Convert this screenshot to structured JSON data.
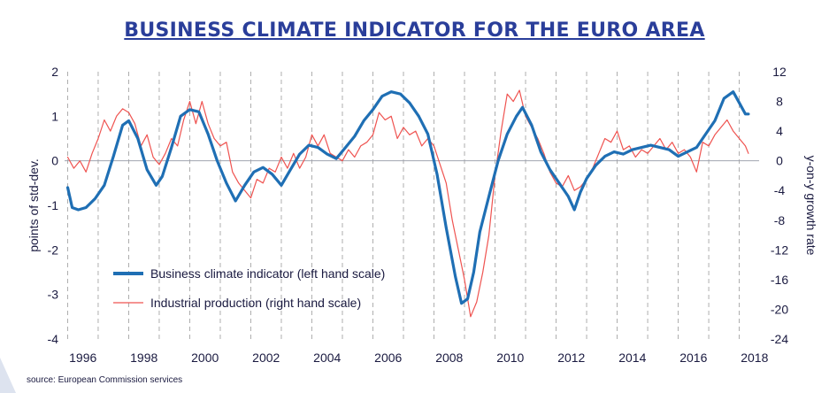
{
  "title": "BUSINESS CLIMATE INDICATOR FOR THE EURO AREA",
  "source": "source: European Commission services",
  "chart_data": {
    "type": "line",
    "title": "BUSINESS CLIMATE INDICATOR FOR THE EURO AREA",
    "xlabel": "",
    "ylabel": "points of std-dev.",
    "y2label": "y-on-y growth rate",
    "ylim": [
      -4,
      2
    ],
    "y2lim": [
      -24,
      12
    ],
    "xlim": [
      1995.9,
      2018.65
    ],
    "yticks": [
      "-4",
      "-3",
      "-2",
      "-1",
      "0",
      "1",
      "2"
    ],
    "y2ticks": [
      "-24",
      "-20",
      "-16",
      "-12",
      "-8",
      "-4",
      "0",
      "4",
      "8",
      "12"
    ],
    "xticks": [
      "1996",
      "1998",
      "2000",
      "2002",
      "2004",
      "2006",
      "2008",
      "2010",
      "2012",
      "2014",
      "2016",
      "2018"
    ],
    "colors": {
      "bci": "#1f6fb4",
      "ip": "#ef5350",
      "axis": "#a0a4b0",
      "title": "#2a3e9a"
    },
    "legend": {
      "placement": "lower-left",
      "entries": [
        "Business climate indicator (left hand scale)",
        "Industrial production (right hand scale)"
      ]
    },
    "series": [
      {
        "name": "Business climate indicator (left hand scale)",
        "axis": "left",
        "x": [
          1996.0,
          1996.15,
          1996.35,
          1996.6,
          1996.9,
          1997.2,
          1997.5,
          1997.8,
          1998.0,
          1998.3,
          1998.6,
          1998.9,
          1999.1,
          1999.4,
          1999.7,
          2000.0,
          2000.3,
          2000.6,
          2000.9,
          2001.2,
          2001.5,
          2001.8,
          2002.1,
          2002.4,
          2002.7,
          2003.0,
          2003.3,
          2003.6,
          2003.9,
          2004.2,
          2004.5,
          2004.8,
          2005.1,
          2005.4,
          2005.7,
          2006.0,
          2006.3,
          2006.6,
          2006.9,
          2007.2,
          2007.5,
          2007.8,
          2008.1,
          2008.4,
          2008.7,
          2008.9,
          2009.1,
          2009.3,
          2009.5,
          2009.8,
          2010.1,
          2010.4,
          2010.7,
          2010.9,
          2011.2,
          2011.5,
          2011.8,
          2012.1,
          2012.4,
          2012.6,
          2012.8,
          2013.0,
          2013.3,
          2013.6,
          2013.9,
          2014.2,
          2014.5,
          2014.8,
          2015.1,
          2015.4,
          2015.7,
          2016.0,
          2016.3,
          2016.6,
          2016.9,
          2017.2,
          2017.5,
          2017.8,
          2018.0,
          2018.2,
          2018.3
        ],
        "values": [
          -0.6,
          -1.05,
          -1.1,
          -1.05,
          -0.85,
          -0.55,
          0.1,
          0.8,
          0.9,
          0.5,
          -0.2,
          -0.55,
          -0.35,
          0.3,
          1.0,
          1.15,
          1.1,
          0.6,
          0.0,
          -0.5,
          -0.9,
          -0.55,
          -0.25,
          -0.15,
          -0.3,
          -0.55,
          -0.2,
          0.15,
          0.35,
          0.3,
          0.15,
          0.05,
          0.3,
          0.55,
          0.9,
          1.15,
          1.45,
          1.55,
          1.5,
          1.3,
          1.0,
          0.6,
          -0.3,
          -1.5,
          -2.6,
          -3.2,
          -3.1,
          -2.5,
          -1.6,
          -0.8,
          0.0,
          0.6,
          1.0,
          1.2,
          0.8,
          0.2,
          -0.2,
          -0.5,
          -0.8,
          -1.1,
          -0.7,
          -0.4,
          -0.1,
          0.1,
          0.2,
          0.15,
          0.25,
          0.3,
          0.35,
          0.3,
          0.25,
          0.1,
          0.2,
          0.3,
          0.6,
          0.9,
          1.4,
          1.55,
          1.3,
          1.05,
          1.05
        ]
      },
      {
        "name": "Industrial production (right hand scale)",
        "axis": "right",
        "x": [
          1996.0,
          1996.2,
          1996.4,
          1996.6,
          1996.8,
          1997.0,
          1997.2,
          1997.4,
          1997.6,
          1997.8,
          1998.0,
          1998.2,
          1998.4,
          1998.6,
          1998.8,
          1999.0,
          1999.2,
          1999.4,
          1999.6,
          1999.8,
          2000.0,
          2000.2,
          2000.4,
          2000.6,
          2000.8,
          2001.0,
          2001.2,
          2001.4,
          2001.6,
          2001.8,
          2002.0,
          2002.2,
          2002.4,
          2002.6,
          2002.8,
          2003.0,
          2003.2,
          2003.4,
          2003.6,
          2003.8,
          2004.0,
          2004.2,
          2004.4,
          2004.6,
          2004.8,
          2005.0,
          2005.2,
          2005.4,
          2005.6,
          2005.8,
          2006.0,
          2006.2,
          2006.4,
          2006.6,
          2006.8,
          2007.0,
          2007.2,
          2007.4,
          2007.6,
          2007.8,
          2008.0,
          2008.2,
          2008.4,
          2008.6,
          2008.8,
          2009.0,
          2009.2,
          2009.4,
          2009.6,
          2009.8,
          2010.0,
          2010.2,
          2010.4,
          2010.6,
          2010.8,
          2011.0,
          2011.2,
          2011.4,
          2011.6,
          2011.8,
          2012.0,
          2012.2,
          2012.4,
          2012.6,
          2012.8,
          2013.0,
          2013.2,
          2013.4,
          2013.6,
          2013.8,
          2014.0,
          2014.2,
          2014.4,
          2014.6,
          2014.8,
          2015.0,
          2015.2,
          2015.4,
          2015.6,
          2015.8,
          2016.0,
          2016.2,
          2016.4,
          2016.6,
          2016.8,
          2017.0,
          2017.2,
          2017.4,
          2017.6,
          2017.8,
          2018.0,
          2018.2,
          2018.3
        ],
        "values": [
          0.5,
          -1.0,
          0.0,
          -1.5,
          1.0,
          3.0,
          5.5,
          4.0,
          6.0,
          7.0,
          6.5,
          5.0,
          2.0,
          3.5,
          0.5,
          -0.5,
          1.0,
          3.0,
          2.0,
          5.5,
          8.0,
          5.0,
          8.0,
          5.0,
          3.0,
          2.0,
          2.5,
          -1.5,
          -3.0,
          -4.0,
          -5.0,
          -2.5,
          -3.0,
          -1.0,
          -1.5,
          0.5,
          -1.0,
          1.0,
          -1.0,
          0.5,
          3.5,
          2.0,
          3.5,
          1.0,
          0.5,
          0.0,
          1.5,
          0.5,
          2.0,
          2.5,
          3.5,
          6.5,
          5.5,
          6.0,
          3.0,
          4.5,
          3.5,
          4.0,
          2.0,
          3.0,
          2.0,
          -0.5,
          -3.0,
          -8.0,
          -12.0,
          -16.0,
          -21.0,
          -19.0,
          -15.0,
          -10.0,
          -2.0,
          4.0,
          9.0,
          8.0,
          9.5,
          6.0,
          4.5,
          3.0,
          1.0,
          -1.5,
          -3.0,
          -3.5,
          -2.0,
          -4.0,
          -3.5,
          -2.5,
          -1.0,
          1.0,
          3.0,
          2.5,
          4.0,
          1.5,
          2.0,
          0.5,
          1.5,
          1.0,
          2.0,
          3.0,
          1.5,
          2.5,
          1.0,
          1.5,
          0.5,
          -1.5,
          2.5,
          2.0,
          3.5,
          4.5,
          5.5,
          4.0,
          3.0,
          2.0,
          1.0
        ]
      }
    ]
  }
}
